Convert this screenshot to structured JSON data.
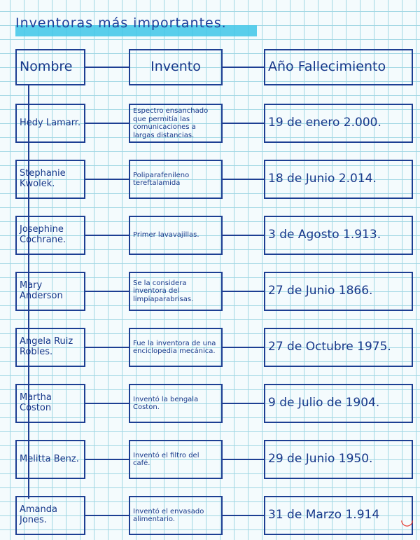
{
  "title": "Inventoras más importantes.",
  "headers": {
    "name": "Nombre",
    "invention": "Invento",
    "death": "Año Fallecimiento"
  },
  "rows": [
    {
      "name": "Hedy Lamarr.",
      "invention": "Espectro ensanchado que permitía las comunicaciones a largas distancias.",
      "death": "19 de enero 2.000."
    },
    {
      "name": "Stephanie Kwolek.",
      "invention": "Poliparafenileno tereftalamida",
      "death": "18 de Junio 2.014."
    },
    {
      "name": "Josephine Cochrane.",
      "invention": "Primer lavavajillas.",
      "death": "3 de Agosto 1.913."
    },
    {
      "name": "Mary Anderson",
      "invention": "Se la considera inventora del limpiaparabrisas.",
      "death": "27 de Junio 1866."
    },
    {
      "name": "Angela Ruiz Robles.",
      "invention": "Fue la inventora de una enciclopedia mecánica.",
      "death": "27 de Octubre 1975."
    },
    {
      "name": "Martha Coston",
      "invention": "Inventó la bengala Coston.",
      "death": "9 de Julio de 1904."
    },
    {
      "name": "Melitta Benz.",
      "invention": "Inventó el filtro del café.",
      "death": "29 de Junio 1950."
    },
    {
      "name": "Amanda Jones.",
      "invention": "Inventó el envasado alimentario.",
      "death": "31 de Marzo 1.914"
    }
  ],
  "colors": {
    "ink": "#1d3f93",
    "highlight": "#3ec6e8",
    "grid": "#9fd6e3"
  }
}
